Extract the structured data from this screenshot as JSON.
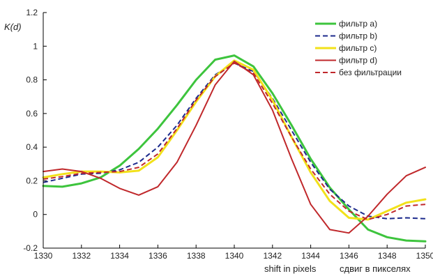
{
  "chart_data": {
    "type": "line",
    "title": "",
    "ylabel": "K(d)",
    "xlabel": "shift in pixels",
    "xlabel_secondary": "сдвиг в пикселях",
    "xlim": [
      1330,
      1350
    ],
    "ylim": [
      -0.2,
      1.2
    ],
    "xticks": [
      1330,
      1332,
      1334,
      1336,
      1338,
      1340,
      1342,
      1344,
      1346,
      1348,
      1350
    ],
    "xtick_labels": [
      "1330",
      "1332",
      "1334",
      "1336",
      "1338",
      "1340",
      "1342",
      "1344",
      "1346",
      "1348",
      "1350"
    ],
    "yticks": [
      -0.2,
      0,
      0.2,
      0.4,
      0.6,
      0.8,
      1,
      1.2
    ],
    "ytick_labels": [
      "-0.2",
      "0",
      "0.2",
      "0.4",
      "0.6",
      "0.8",
      "1",
      "1.2"
    ],
    "grid": false,
    "legend_position": "top-right",
    "x": [
      1330,
      1331,
      1332,
      1333,
      1334,
      1335,
      1336,
      1337,
      1338,
      1339,
      1340,
      1341,
      1342,
      1343,
      1344,
      1345,
      1346,
      1347,
      1348,
      1349,
      1350
    ],
    "series": [
      {
        "name": "фильтр a)",
        "color": "#3dc43d",
        "style": "solid",
        "width": 3,
        "values": [
          0.17,
          0.165,
          0.185,
          0.22,
          0.29,
          0.39,
          0.51,
          0.65,
          0.8,
          0.92,
          0.945,
          0.88,
          0.72,
          0.53,
          0.33,
          0.16,
          0.03,
          -0.09,
          -0.135,
          -0.155,
          -0.16
        ]
      },
      {
        "name": "фильтр b)",
        "color": "#1c2a8c",
        "style": "dashed",
        "width": 2,
        "values": [
          0.19,
          0.215,
          0.24,
          0.245,
          0.265,
          0.31,
          0.4,
          0.53,
          0.69,
          0.83,
          0.9,
          0.85,
          0.69,
          0.5,
          0.31,
          0.15,
          0.05,
          -0.01,
          -0.025,
          -0.02,
          -0.025
        ]
      },
      {
        "name": "фильтр c)",
        "color": "#f2e11a",
        "style": "solid",
        "width": 3,
        "values": [
          0.22,
          0.24,
          0.255,
          0.255,
          0.25,
          0.26,
          0.34,
          0.5,
          0.67,
          0.82,
          0.915,
          0.86,
          0.68,
          0.46,
          0.25,
          0.08,
          -0.02,
          -0.03,
          0.02,
          0.07,
          0.09
        ]
      },
      {
        "name": "фильтр d)",
        "color": "#c0282b",
        "style": "solid",
        "width": 2,
        "values": [
          0.255,
          0.27,
          0.255,
          0.215,
          0.155,
          0.115,
          0.165,
          0.31,
          0.53,
          0.77,
          0.91,
          0.83,
          0.62,
          0.33,
          0.06,
          -0.09,
          -0.11,
          -0.01,
          0.12,
          0.23,
          0.28
        ]
      },
      {
        "name": "без фильтрации",
        "color": "#c0282b",
        "style": "dashed",
        "width": 2,
        "values": [
          0.21,
          0.225,
          0.245,
          0.25,
          0.255,
          0.28,
          0.36,
          0.51,
          0.68,
          0.82,
          0.9,
          0.84,
          0.66,
          0.46,
          0.27,
          0.12,
          0.02,
          -0.03,
          0.0,
          0.05,
          0.06
        ]
      }
    ]
  }
}
